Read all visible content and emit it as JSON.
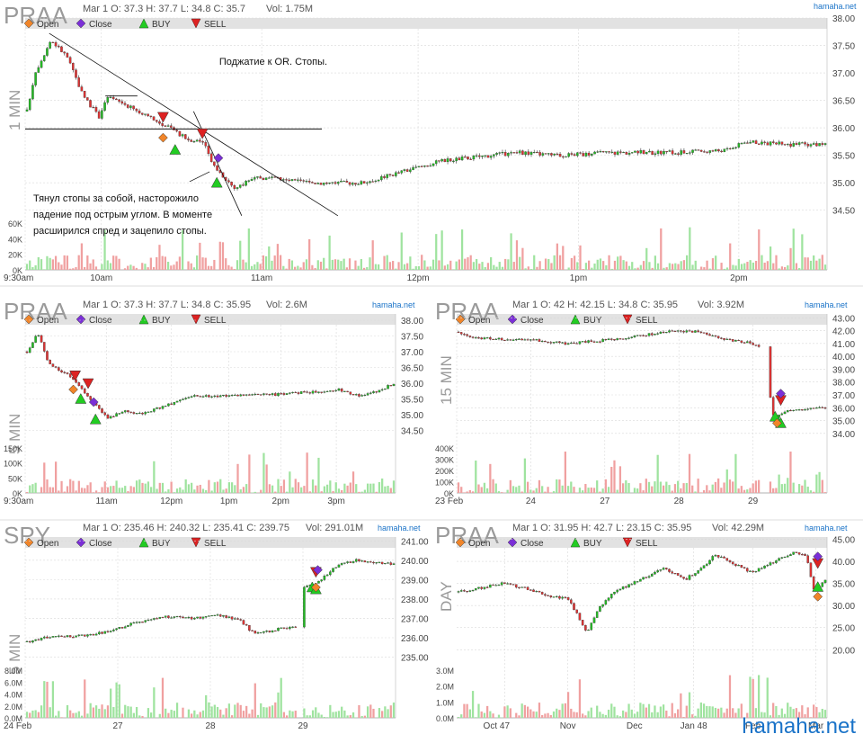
{
  "watermark": "hamaha.net",
  "legend": {
    "open": "Open",
    "close": "Close",
    "buy": "BUY",
    "sell": "SELL"
  },
  "colors": {
    "up": "#1aa31a",
    "down": "#cc2222",
    "vol_up": "#9fe39f",
    "vol_down": "#f0a0a0",
    "open_marker": "#f0852a",
    "close_marker": "#7b2fd6",
    "buy": "#22cc22",
    "sell": "#dd2222",
    "band": "#e2e2e2",
    "grid": "#d9d9d9"
  },
  "chart_data": [
    {
      "id": "p1",
      "type": "candlestick",
      "symbol": "PRAA",
      "timeframe_label": "1 MIN",
      "source": "hamaha.net",
      "info": "Mar 1 O: 37.3 H: 37.7 L: 34.8 C: 35.7",
      "vol_text": "Vol: 1.75M",
      "ylim": [
        34.2,
        38
      ],
      "yticks": [
        "38.00",
        "37.50",
        "37.00",
        "36.50",
        "36.00",
        "35.50",
        "35.00",
        "34.50"
      ],
      "vol_ticks": [
        "60K",
        "40K",
        "20K",
        "0K"
      ],
      "xticks": [
        "9:30am",
        "10am",
        "11am",
        "12pm",
        "1pm",
        "2pm"
      ],
      "annotations": [
        "Поджатие к OR. Стопы.",
        "Тянул стопы за собой, насторожило",
        "падение под острым углом. В моменте",
        "расширился спред и зацепило стопы."
      ],
      "key_points": [
        {
          "label": "open",
          "price": 37.3
        },
        {
          "label": "high",
          "price": 37.7
        },
        {
          "label": "low",
          "price": 34.8
        },
        {
          "label": "close",
          "price": 35.7
        },
        {
          "label": "horizontal_level",
          "price": 35.98
        },
        {
          "label": "sell_1",
          "price": 36.2
        },
        {
          "label": "sell_2",
          "price": 35.9
        },
        {
          "label": "buy_1",
          "price": 35.6
        },
        {
          "label": "buy_2",
          "price": 35.0
        },
        {
          "label": "open_marker",
          "price": 35.82
        },
        {
          "label": "close_marker",
          "price": 35.45
        }
      ]
    },
    {
      "id": "p2",
      "type": "candlestick",
      "symbol": "PRAA",
      "timeframe_label": "5 MIN",
      "source": "hamaha.net",
      "info": "Mar 1 O: 37.3 H: 37.7 L: 34.8 C: 35.95",
      "vol_text": "Vol: 2.6M",
      "ylim": [
        34.2,
        38.2
      ],
      "yticks": [
        "38.00",
        "37.50",
        "37.00",
        "36.50",
        "36.00",
        "35.50",
        "35.00",
        "34.50"
      ],
      "vol_ticks": [
        "150K",
        "100K",
        "50K",
        "0K"
      ],
      "xticks": [
        "9:30am",
        "11am",
        "12pm",
        "1pm",
        "2pm",
        "3pm"
      ]
    },
    {
      "id": "p3",
      "type": "candlestick",
      "symbol": "PRAA",
      "timeframe_label": "15 MIN",
      "source": "hamaha.net",
      "info": "Mar 1 O: 42 H: 42.15 L: 34.8 C: 35.95",
      "vol_text": "Vol: 3.92M",
      "ylim": [
        33.5,
        43.3
      ],
      "yticks": [
        "43.00",
        "42.00",
        "41.00",
        "40.00",
        "39.00",
        "38.00",
        "37.00",
        "36.00",
        "35.00",
        "34.00"
      ],
      "vol_ticks": [
        "400K",
        "300K",
        "200K",
        "100K",
        "0K"
      ],
      "xticks": [
        "23 Feb",
        "24",
        "27",
        "28",
        "29"
      ]
    },
    {
      "id": "p4",
      "type": "candlestick",
      "symbol": "SPY",
      "timeframe_label": "5 MIN",
      "source": "hamaha.net",
      "info": "Mar 1 O: 235.46 H: 240.32 L: 235.41 C: 239.75",
      "vol_text": "Vol: 291.01M",
      "ylim": [
        234.7,
        241.2
      ],
      "yticks": [
        "241.00",
        "240.00",
        "239.00",
        "238.00",
        "237.00",
        "236.00",
        "235.00"
      ],
      "vol_ticks": [
        "8.0M",
        "6.0M",
        "4.0M",
        "2.0M",
        "0.0M"
      ],
      "xticks": [
        "24 Feb",
        "27",
        "28",
        "29"
      ]
    },
    {
      "id": "p5",
      "type": "candlestick",
      "symbol": "PRAA",
      "timeframe_label": "DAY",
      "source": "hamaha.net",
      "info": "Mar 1 O: 31.95 H: 42.7 L: 23.15 C: 35.95",
      "vol_text": "Vol: 42.29M",
      "ylim": [
        17,
        45.5
      ],
      "yticks": [
        "45.00",
        "40.00",
        "35.00",
        "30.00",
        "25.00",
        "20.00"
      ],
      "vol_ticks": [
        "3.0M",
        "2.0M",
        "1.0M",
        "0.0M"
      ],
      "xticks": [
        "Oct 47",
        "Nov",
        "Dec",
        "Jan 48",
        "Feb",
        "Mar"
      ]
    }
  ]
}
